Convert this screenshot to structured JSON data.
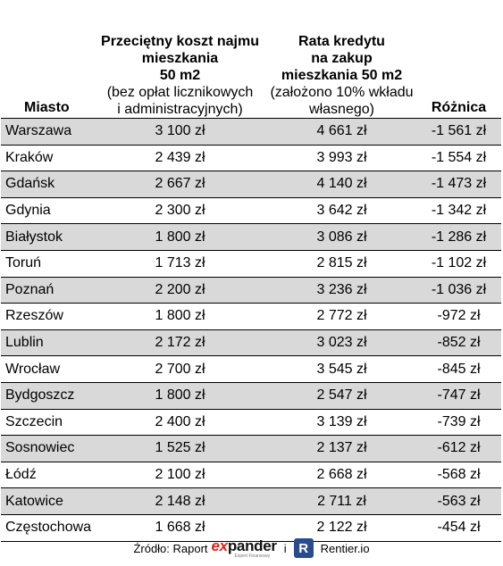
{
  "table": {
    "headers": {
      "city": "Miasto",
      "rent": {
        "bold": [
          "Przeciętny koszt najmu",
          "mieszkania",
          "50 m2"
        ],
        "normal": [
          "(bez opłat licznikowych",
          "i administracyjnych)"
        ]
      },
      "loan": {
        "bold": [
          "Rata kredytu",
          "na zakup",
          "mieszkania 50 m2"
        ],
        "normal": [
          "(założono 10% wkładu",
          "własnego)"
        ]
      },
      "diff": "Różnica"
    },
    "rows": [
      {
        "city": "Warszawa",
        "rent": "3 100 zł",
        "loan": "4 661 zł",
        "diff": "-1 561 zł"
      },
      {
        "city": "Kraków",
        "rent": "2 439 zł",
        "loan": "3 993 zł",
        "diff": "-1 554 zł"
      },
      {
        "city": "Gdańsk",
        "rent": "2 667 zł",
        "loan": "4 140 zł",
        "diff": "-1 473 zł"
      },
      {
        "city": "Gdynia",
        "rent": "2 300 zł",
        "loan": "3 642 zł",
        "diff": "-1 342 zł"
      },
      {
        "city": "Białystok",
        "rent": "1 800 zł",
        "loan": "3 086 zł",
        "diff": "-1 286 zł"
      },
      {
        "city": "Toruń",
        "rent": "1 713 zł",
        "loan": "2 815 zł",
        "diff": "-1 102 zł"
      },
      {
        "city": "Poznań",
        "rent": "2 200 zł",
        "loan": "3 236 zł",
        "diff": "-1 036 zł"
      },
      {
        "city": "Rzeszów",
        "rent": "1 800 zł",
        "loan": "2 772 zł",
        "diff": "-972 zł"
      },
      {
        "city": "Lublin",
        "rent": "2 172 zł",
        "loan": "3 023 zł",
        "diff": "-852 zł"
      },
      {
        "city": "Wrocław",
        "rent": "2 700 zł",
        "loan": "3 545 zł",
        "diff": "-845 zł"
      },
      {
        "city": "Bydgoszcz",
        "rent": "1 800 zł",
        "loan": "2 547 zł",
        "diff": "-747 zł"
      },
      {
        "city": "Szczecin",
        "rent": "2 400 zł",
        "loan": "3 139 zł",
        "diff": "-739 zł"
      },
      {
        "city": "Sosnowiec",
        "rent": "1 525 zł",
        "loan": "2 137 zł",
        "diff": "-612 zł"
      },
      {
        "city": "Łódź",
        "rent": "2 100 zł",
        "loan": "2 668 zł",
        "diff": "-568 zł"
      },
      {
        "city": "Katowice",
        "rent": "2 148 zł",
        "loan": "2 711 zł",
        "diff": "-563 zł"
      },
      {
        "city": "Częstochowa",
        "rent": "1 668 zł",
        "loan": "2 122 zł",
        "diff": "-454 zł"
      }
    ],
    "row_stripe_color": "#d9d9d9"
  },
  "source": {
    "label": "Źródło: Raport",
    "expander_logo": {
      "prefix": "ex",
      "rest": "pander",
      "tagline": "Expert Finansowy",
      "accent": "#e2231a"
    },
    "separator": "i",
    "rentier_icon_letter": "R",
    "rentier_icon_color": "#2a4c8f",
    "rentier_name": "Rentier.io"
  }
}
